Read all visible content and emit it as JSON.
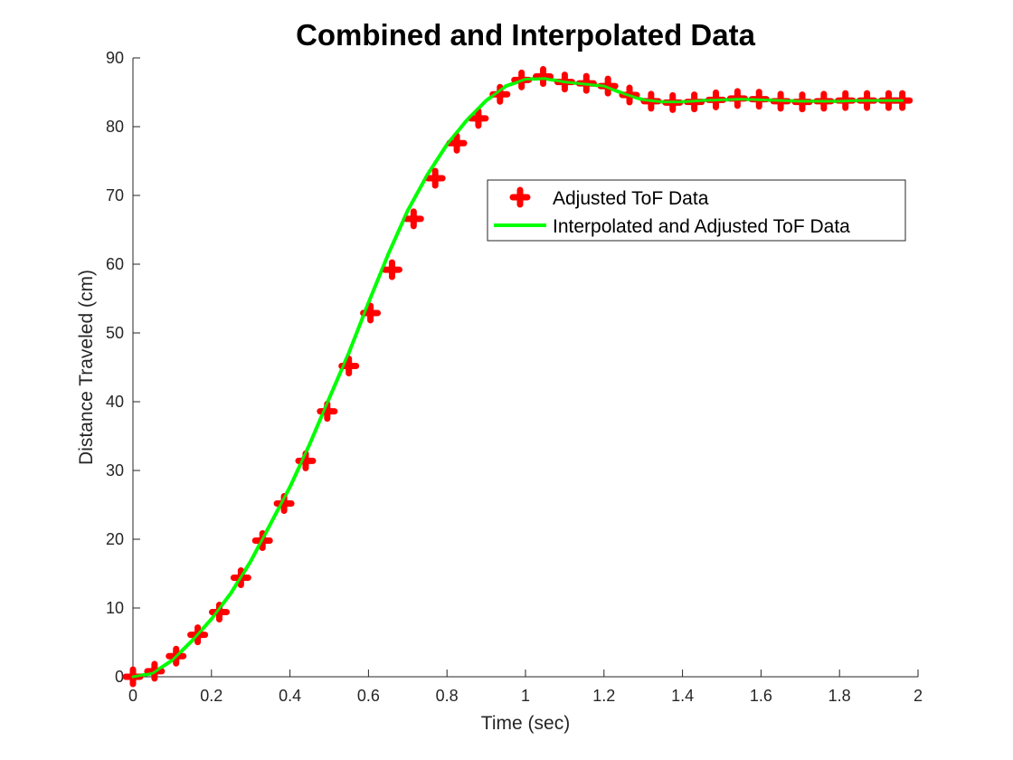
{
  "chart_data": {
    "type": "scatter+line",
    "title": "Combined and Interpolated Data",
    "xlabel": "Time (sec)",
    "ylabel": "Distance Traveled (cm)",
    "xlim": [
      0,
      2
    ],
    "ylim": [
      0,
      90
    ],
    "xticks": [
      0,
      0.2,
      0.4,
      0.6,
      0.8,
      1,
      1.2,
      1.4,
      1.6,
      1.8,
      2
    ],
    "xtick_labels": [
      "0",
      "0.2",
      "0.4",
      "0.6",
      "0.8",
      "1",
      "1.2",
      "1.4",
      "1.6",
      "1.8",
      "2"
    ],
    "yticks": [
      0,
      10,
      20,
      30,
      40,
      50,
      60,
      70,
      80,
      90
    ],
    "ytick_labels": [
      "0",
      "10",
      "20",
      "30",
      "40",
      "50",
      "60",
      "70",
      "80",
      "90"
    ],
    "grid": false,
    "legend": {
      "placement": "upper-right-inside",
      "entries": [
        "Adjusted ToF Data",
        "Interpolated and Adjusted ToF Data"
      ]
    },
    "series": [
      {
        "name": "Adjusted ToF Data",
        "kind": "markers",
        "color": "#ff0000",
        "x": [
          0,
          0.055,
          0.11,
          0.165,
          0.22,
          0.275,
          0.33,
          0.385,
          0.44,
          0.495,
          0.55,
          0.605,
          0.66,
          0.715,
          0.77,
          0.825,
          0.88,
          0.935,
          0.99,
          1.045,
          1.1,
          1.155,
          1.21,
          1.265,
          1.32,
          1.375,
          1.43,
          1.485,
          1.54,
          1.595,
          1.65,
          1.705,
          1.76,
          1.815,
          1.87,
          1.925,
          1.96
        ],
        "y": [
          0,
          0.8,
          3.0,
          6.1,
          9.4,
          14.4,
          19.8,
          25.2,
          31.4,
          38.6,
          45.2,
          52.9,
          59.2,
          66.6,
          72.5,
          77.6,
          81.2,
          84.7,
          86.8,
          87.3,
          86.5,
          86.3,
          85.9,
          84.6,
          83.7,
          83.5,
          83.6,
          83.9,
          84.1,
          84.0,
          83.7,
          83.6,
          83.7,
          83.8,
          83.8,
          83.8,
          83.8
        ]
      },
      {
        "name": "Interpolated and Adjusted ToF Data",
        "kind": "line",
        "color": "#00ff00",
        "x": [
          0,
          0.05,
          0.1,
          0.15,
          0.2,
          0.25,
          0.3,
          0.35,
          0.4,
          0.45,
          0.5,
          0.55,
          0.6,
          0.65,
          0.7,
          0.75,
          0.8,
          0.85,
          0.9,
          0.95,
          1.0,
          1.05,
          1.1,
          1.15,
          1.2,
          1.25,
          1.3,
          1.35,
          1.4,
          1.45,
          1.5,
          1.55,
          1.6,
          1.65,
          1.7,
          1.75,
          1.8,
          1.85,
          1.9,
          1.96
        ],
        "y": [
          0,
          0.5,
          2.4,
          5.2,
          8.4,
          12.2,
          16.8,
          22.2,
          27.6,
          33.8,
          40.5,
          47.1,
          54.4,
          61.4,
          67.8,
          73.0,
          77.4,
          80.9,
          83.8,
          85.9,
          86.9,
          87.0,
          86.5,
          86.2,
          85.9,
          84.8,
          83.9,
          83.6,
          83.6,
          83.8,
          83.9,
          84.0,
          83.9,
          83.8,
          83.7,
          83.7,
          83.7,
          83.8,
          83.8,
          83.8
        ]
      }
    ]
  }
}
